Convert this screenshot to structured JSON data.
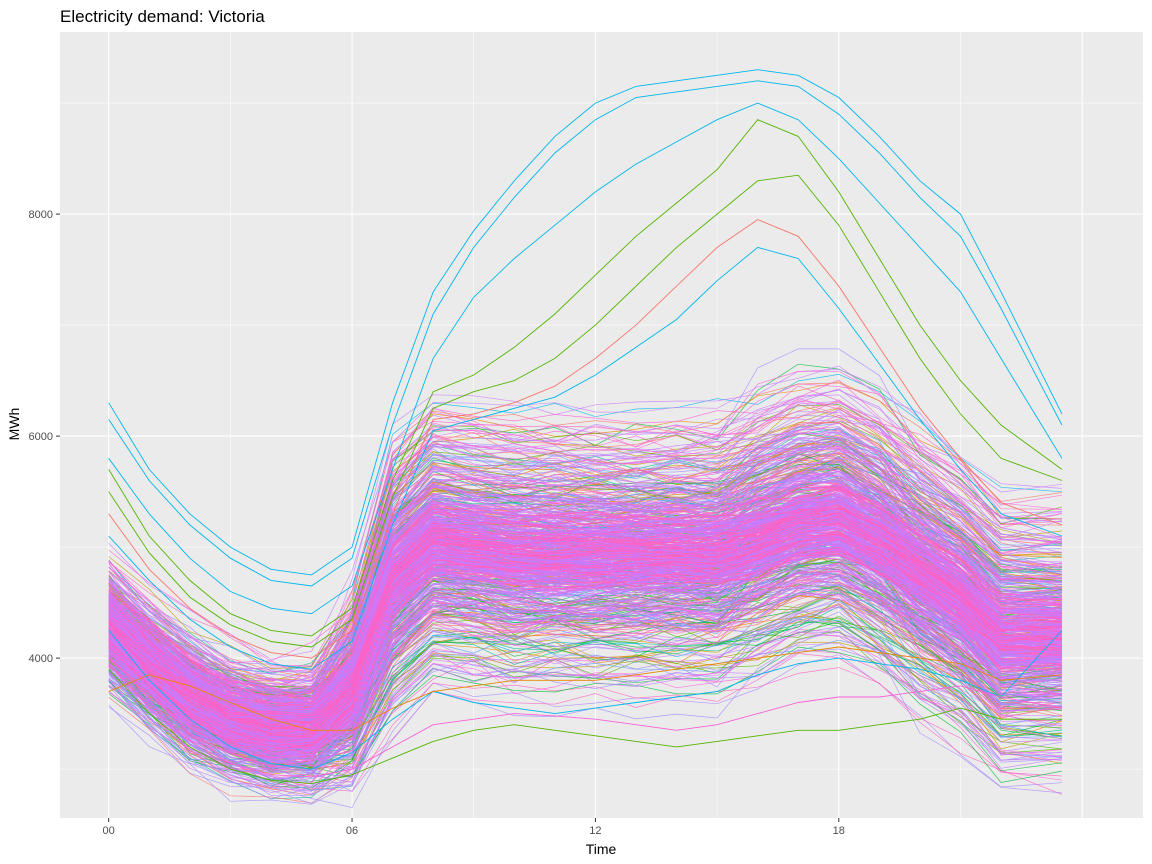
{
  "chart_data": {
    "type": "line",
    "title": "Electricity demand: Victoria",
    "xlabel": "Time",
    "ylabel": "MWh",
    "x_ticks": [
      {
        "value": 0,
        "label": "00"
      },
      {
        "value": 6,
        "label": "06"
      },
      {
        "value": 12,
        "label": "12"
      },
      {
        "value": 18,
        "label": "18"
      }
    ],
    "y_ticks": [
      {
        "value": 4000,
        "label": "4000"
      },
      {
        "value": 6000,
        "label": "6000"
      },
      {
        "value": 8000,
        "label": "8000"
      }
    ],
    "xlim": [
      -1.2,
      25.5
    ],
    "ylim": [
      2560,
      9640
    ],
    "grid": true,
    "legend": "none",
    "background_color": "#EBEBEB",
    "grid_color": "#FFFFFF",
    "series_colors": [
      "#F8766D",
      "#C49A00",
      "#53B400",
      "#00C094",
      "#00B6EB",
      "#A58AFF",
      "#FB61D7",
      "#E58700",
      "#00BA38",
      "#619CFF",
      "#C77CFF",
      "#FF61C3"
    ],
    "hours": [
      0,
      1,
      2,
      3,
      4,
      5,
      6,
      7,
      8,
      9,
      10,
      11,
      12,
      13,
      14,
      15,
      16,
      17,
      18,
      19,
      20,
      21,
      22,
      23.5
    ],
    "highlighted_series": [
      {
        "color": "#00B6EB",
        "values": [
          6300,
          5700,
          5300,
          5000,
          4800,
          4750,
          5000,
          6300,
          7300,
          7850,
          8300,
          8700,
          9000,
          9150,
          9200,
          9250,
          9300,
          9250,
          9050,
          8700,
          8300,
          8000,
          7300,
          6200
        ]
      },
      {
        "color": "#00B6EB",
        "values": [
          6150,
          5600,
          5200,
          4900,
          4700,
          4650,
          4900,
          6100,
          7100,
          7700,
          8150,
          8550,
          8850,
          9050,
          9100,
          9150,
          9200,
          9150,
          8900,
          8550,
          8150,
          7800,
          7150,
          6100
        ]
      },
      {
        "color": "#00B6EB",
        "values": [
          5800,
          5300,
          4900,
          4600,
          4450,
          4400,
          4650,
          5700,
          6700,
          7250,
          7600,
          7900,
          8200,
          8450,
          8650,
          8850,
          9000,
          8850,
          8500,
          8100,
          7700,
          7300,
          6700,
          5800
        ]
      },
      {
        "color": "#53B400",
        "values": [
          5700,
          5100,
          4700,
          4400,
          4250,
          4200,
          4450,
          5600,
          6400,
          6550,
          6800,
          7100,
          7450,
          7800,
          8100,
          8400,
          8850,
          8700,
          8200,
          7600,
          7000,
          6500,
          6100,
          5700
        ]
      },
      {
        "color": "#53B400",
        "values": [
          5500,
          4950,
          4550,
          4300,
          4150,
          4100,
          4350,
          5450,
          6250,
          6400,
          6500,
          6700,
          7000,
          7350,
          7700,
          8000,
          8300,
          8350,
          7900,
          7300,
          6700,
          6200,
          5800,
          5600
        ]
      },
      {
        "color": "#F8766D",
        "values": [
          5300,
          4800,
          4450,
          4200,
          4050,
          4000,
          4250,
          5300,
          6150,
          6200,
          6300,
          6450,
          6700,
          7000,
          7350,
          7700,
          7950,
          7800,
          7350,
          6800,
          6250,
          5800,
          5400,
          5200
        ]
      },
      {
        "color": "#00B6EB",
        "values": [
          5100,
          4700,
          4350,
          4100,
          3950,
          3900,
          4150,
          5200,
          6050,
          6150,
          6250,
          6350,
          6550,
          6800,
          7050,
          7400,
          7700,
          7600,
          7150,
          6650,
          6150,
          5700,
          5300,
          5100
        ]
      },
      {
        "color": "#00B6EB",
        "values": [
          4250,
          3800,
          3450,
          3200,
          3050,
          3000,
          3150,
          3450,
          3700,
          3600,
          3550,
          3500,
          3550,
          3600,
          3650,
          3700,
          3850,
          3950,
          4000,
          3950,
          3900,
          3800,
          3650,
          4250
        ]
      },
      {
        "color": "#53B400",
        "values": [
          3900,
          3500,
          3200,
          3000,
          2900,
          2870,
          2950,
          3100,
          3250,
          3350,
          3400,
          3350,
          3300,
          3250,
          3200,
          3250,
          3300,
          3350,
          3350,
          3400,
          3450,
          3550,
          3450,
          3450
        ]
      },
      {
        "color": "#FB61D7",
        "values": [
          3950,
          3550,
          3250,
          3050,
          2950,
          2930,
          3000,
          3200,
          3400,
          3450,
          3500,
          3480,
          3450,
          3400,
          3350,
          3400,
          3500,
          3600,
          3650,
          3650,
          3700,
          3750,
          3650,
          3550
        ]
      },
      {
        "color": "#E58700",
        "values": [
          3700,
          3850,
          3750,
          3600,
          3450,
          3350,
          3350,
          3550,
          3700,
          3750,
          3800,
          3800,
          3800,
          3850,
          3900,
          3950,
          4000,
          4050,
          4100,
          4050,
          4000,
          3950,
          3800,
          3850
        ]
      }
    ]
  }
}
